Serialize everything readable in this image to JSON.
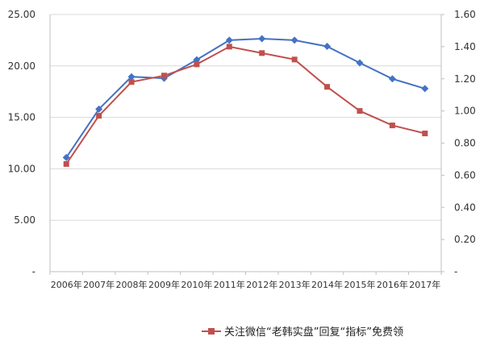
{
  "chart_data": {
    "type": "line",
    "title": "",
    "xlabel": "",
    "ylabel": "",
    "categories": [
      "2006年",
      "2007年",
      "2008年",
      "2009年",
      "2010年",
      "2011年",
      "2012年",
      "2013年",
      "2014年",
      "2015年",
      "2016年",
      "2017年"
    ],
    "y_left": {
      "ylim": [
        0,
        25
      ],
      "ticks": [
        "-",
        "5.00",
        "10.00",
        "15.00",
        "20.00",
        "25.00"
      ]
    },
    "y_right": {
      "ylim": [
        0,
        1.6
      ],
      "ticks": [
        "-",
        "0.20",
        "0.40",
        "0.60",
        "0.80",
        "1.00",
        "1.20",
        "1.40",
        "1.60"
      ]
    },
    "grid": true,
    "series": [
      {
        "axis": "left",
        "color": "#4472C4",
        "marker": "diamond",
        "values": [
          11.1,
          15.8,
          18.95,
          18.8,
          20.6,
          22.5,
          22.65,
          22.5,
          21.9,
          20.3,
          18.75,
          17.8
        ]
      },
      {
        "axis": "right",
        "color": "#C0504D",
        "marker": "square",
        "values": [
          0.67,
          0.97,
          1.18,
          1.22,
          1.29,
          1.4,
          1.36,
          1.32,
          1.15,
          1.0,
          0.91,
          0.86
        ]
      }
    ],
    "legend": {
      "position": "bottom"
    }
  },
  "watermark": "关注微信“老韩实盘”回复“指标”免费领"
}
